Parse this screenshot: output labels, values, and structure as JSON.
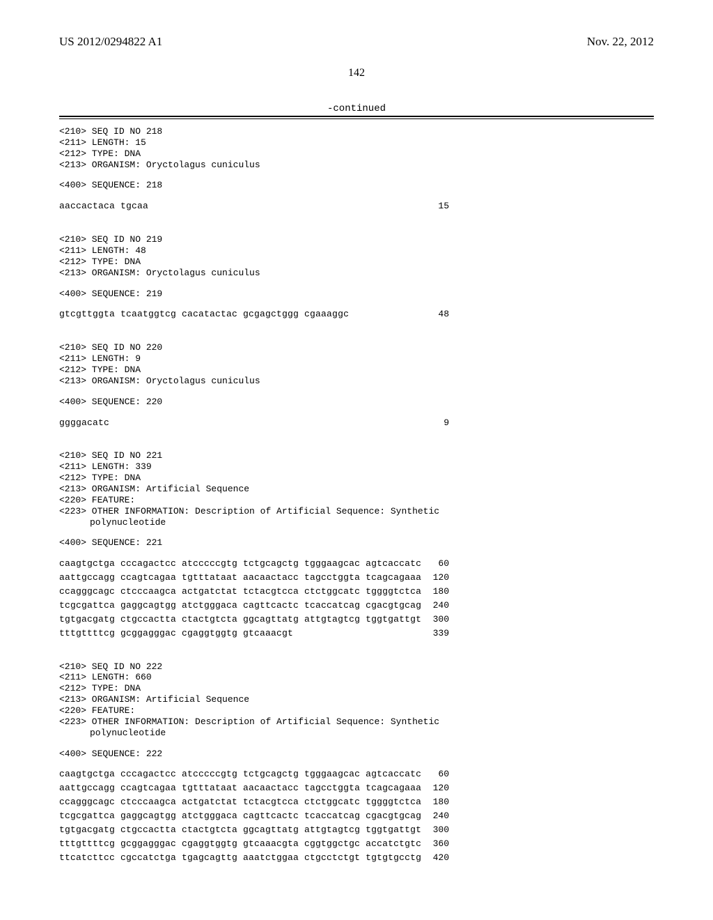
{
  "header": {
    "left": "US 2012/0294822 A1",
    "right": "Nov. 22, 2012"
  },
  "page_number": "142",
  "continued_label": "-continued",
  "blocks": [
    {
      "meta": [
        "<210> SEQ ID NO 218",
        "<211> LENGTH: 15",
        "<212> TYPE: DNA",
        "<213> ORGANISM: Oryctolagus cuniculus"
      ],
      "seq_label": "<400> SEQUENCE: 218",
      "rows": [
        {
          "seq": "aaccactaca tgcaa",
          "num": "15"
        }
      ]
    },
    {
      "meta": [
        "<210> SEQ ID NO 219",
        "<211> LENGTH: 48",
        "<212> TYPE: DNA",
        "<213> ORGANISM: Oryctolagus cuniculus"
      ],
      "seq_label": "<400> SEQUENCE: 219",
      "rows": [
        {
          "seq": "gtcgttggta tcaatggtcg cacatactac gcgagctggg cgaaaggc",
          "num": "48"
        }
      ]
    },
    {
      "meta": [
        "<210> SEQ ID NO 220",
        "<211> LENGTH: 9",
        "<212> TYPE: DNA",
        "<213> ORGANISM: Oryctolagus cuniculus"
      ],
      "seq_label": "<400> SEQUENCE: 220",
      "rows": [
        {
          "seq": "ggggacatc",
          "num": "9"
        }
      ]
    },
    {
      "meta": [
        "<210> SEQ ID NO 221",
        "<211> LENGTH: 339",
        "<212> TYPE: DNA",
        "<213> ORGANISM: Artificial Sequence",
        "<220> FEATURE:",
        "<223> OTHER INFORMATION: Description of Artificial Sequence: Synthetic"
      ],
      "meta_indent": "polynucleotide",
      "seq_label": "<400> SEQUENCE: 221",
      "rows": [
        {
          "seq": "caagtgctga cccagactcc atcccccgtg tctgcagctg tgggaagcac agtcaccatc",
          "num": "60"
        },
        {
          "seq": "aattgccagg ccagtcagaa tgtttataat aacaactacc tagcctggta tcagcagaaa",
          "num": "120"
        },
        {
          "seq": "ccagggcagc ctcccaagca actgatctat tctacgtcca ctctggcatc tggggtctca",
          "num": "180"
        },
        {
          "seq": "tcgcgattca gaggcagtgg atctgggaca cagttcactc tcaccatcag cgacgtgcag",
          "num": "240"
        },
        {
          "seq": "tgtgacgatg ctgccactta ctactgtcta ggcagttatg attgtagtcg tggtgattgt",
          "num": "300"
        },
        {
          "seq": "tttgttttcg gcggagggac cgaggtggtg gtcaaacgt",
          "num": "339"
        }
      ]
    },
    {
      "meta": [
        "<210> SEQ ID NO 222",
        "<211> LENGTH: 660",
        "<212> TYPE: DNA",
        "<213> ORGANISM: Artificial Sequence",
        "<220> FEATURE:",
        "<223> OTHER INFORMATION: Description of Artificial Sequence: Synthetic"
      ],
      "meta_indent": "polynucleotide",
      "seq_label": "<400> SEQUENCE: 222",
      "rows": [
        {
          "seq": "caagtgctga cccagactcc atcccccgtg tctgcagctg tgggaagcac agtcaccatc",
          "num": "60"
        },
        {
          "seq": "aattgccagg ccagtcagaa tgtttataat aacaactacc tagcctggta tcagcagaaa",
          "num": "120"
        },
        {
          "seq": "ccagggcagc ctcccaagca actgatctat tctacgtcca ctctggcatc tggggtctca",
          "num": "180"
        },
        {
          "seq": "tcgcgattca gaggcagtgg atctgggaca cagttcactc tcaccatcag cgacgtgcag",
          "num": "240"
        },
        {
          "seq": "tgtgacgatg ctgccactta ctactgtcta ggcagttatg attgtagtcg tggtgattgt",
          "num": "300"
        },
        {
          "seq": "tttgttttcg gcggagggac cgaggtggtg gtcaaacgta cggtggctgc accatctgtc",
          "num": "360"
        },
        {
          "seq": "ttcatcttcc cgccatctga tgagcagttg aaatctggaa ctgcctctgt tgtgtgcctg",
          "num": "420"
        }
      ]
    }
  ]
}
